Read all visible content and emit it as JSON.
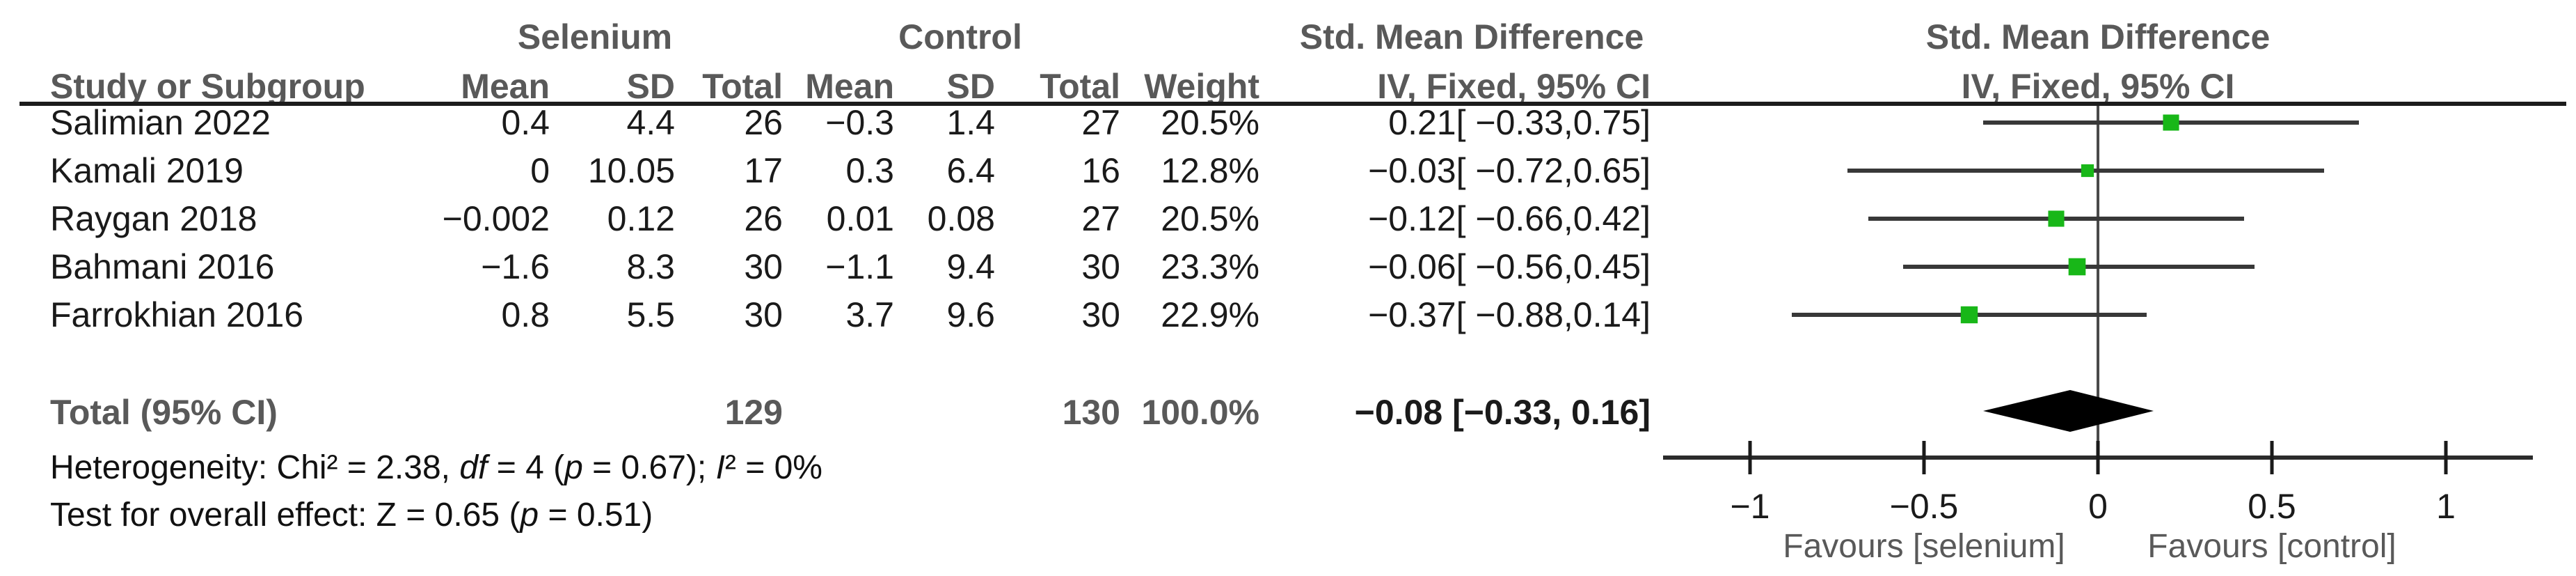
{
  "figure": {
    "background": "#ffffff",
    "marker_green": "#18b718",
    "line_color": "#383838",
    "header_gray": "#595959",
    "header": {
      "group_selenium": "Selenium",
      "group_control": "Control",
      "smd_text_line1": "Std. Mean Difference",
      "smd_text_line2": "IV, Fixed, 95% CI",
      "smd_plot_line1": "Std. Mean Difference",
      "smd_plot_line2": "IV, Fixed, 95% CI",
      "col_study": "Study or Subgroup",
      "col_sel_mean": "Mean",
      "col_sel_sd": "SD",
      "col_sel_total": "Total",
      "col_ctl_mean": "Mean",
      "col_ctl_sd": "SD",
      "col_ctl_total": "Total",
      "col_weight": "Weight"
    }
  },
  "chart_data": {
    "type": "forest",
    "effect_measure": "Std. Mean Difference, IV, Fixed, 95% CI",
    "axis": {
      "min": -1.25,
      "max": 1.25,
      "ticks": [
        {
          "v": -1,
          "label": "−1"
        },
        {
          "v": -0.5,
          "label": "−0.5"
        },
        {
          "v": 0,
          "label": "0"
        },
        {
          "v": 0.5,
          "label": "0.5"
        },
        {
          "v": 1,
          "label": "1"
        }
      ]
    },
    "favours_left": "Favours [selenium]",
    "favours_right": "Favours [control]",
    "studies": [
      {
        "name": "Salimian 2022",
        "sel_mean": "0.4",
        "sel_sd": "4.4",
        "sel_total": "26",
        "ctl_mean": "−0.3",
        "ctl_sd": "1.4",
        "ctl_total": "27",
        "weight": "20.5%",
        "weight_value": 20.5,
        "ci_label": "0.21[ −0.33,0.75]",
        "smd": 0.21,
        "ci_low": -0.33,
        "ci_high": 0.75
      },
      {
        "name": "Kamali 2019",
        "sel_mean": "0",
        "sel_sd": "10.05",
        "sel_total": "17",
        "ctl_mean": "0.3",
        "ctl_sd": "6.4",
        "ctl_total": "16",
        "weight": "12.8%",
        "weight_value": 12.8,
        "ci_label": "−0.03[ −0.72,0.65]",
        "smd": -0.03,
        "ci_low": -0.72,
        "ci_high": 0.65
      },
      {
        "name": "Raygan 2018",
        "sel_mean": "−0.002",
        "sel_sd": "0.12",
        "sel_total": "26",
        "ctl_mean": "0.01",
        "ctl_sd": "0.08",
        "ctl_total": "27",
        "weight": "20.5%",
        "weight_value": 20.5,
        "ci_label": "−0.12[ −0.66,0.42]",
        "smd": -0.12,
        "ci_low": -0.66,
        "ci_high": 0.42
      },
      {
        "name": "Bahmani 2016",
        "sel_mean": "−1.6",
        "sel_sd": "8.3",
        "sel_total": "30",
        "ctl_mean": "−1.1",
        "ctl_sd": "9.4",
        "ctl_total": "30",
        "weight": "23.3%",
        "weight_value": 23.3,
        "ci_label": "−0.06[ −0.56,0.45]",
        "smd": -0.06,
        "ci_low": -0.56,
        "ci_high": 0.45
      },
      {
        "name": "Farrokhian 2016",
        "sel_mean": "0.8",
        "sel_sd": "5.5",
        "sel_total": "30",
        "ctl_mean": "3.7",
        "ctl_sd": "9.6",
        "ctl_total": "30",
        "weight": "22.9%",
        "weight_value": 22.9,
        "ci_label": "−0.37[ −0.88,0.14]",
        "smd": -0.37,
        "ci_low": -0.88,
        "ci_high": 0.14
      }
    ],
    "total": {
      "label": "Total (95% CI)",
      "sel_total": "129",
      "ctl_total": "130",
      "weight": "100.0%",
      "ci_label": "−0.08 [−0.33, 0.16]",
      "smd": -0.08,
      "ci_low": -0.33,
      "ci_high": 0.16
    },
    "heterogeneity_segments": [
      {
        "t": "Heterogeneity: Chi² = 2.38, "
      },
      {
        "t": "df",
        "i": true
      },
      {
        "t": " = 4 ("
      },
      {
        "t": "p",
        "i": true
      },
      {
        "t": " = 0.67); "
      },
      {
        "t": "I",
        "i": true
      },
      {
        "t": "² = 0%"
      }
    ],
    "overall_test_segments": [
      {
        "t": "Test for overall effect: Z = 0.65 ("
      },
      {
        "t": "p",
        "i": true
      },
      {
        "t": " = 0.51)"
      }
    ]
  }
}
